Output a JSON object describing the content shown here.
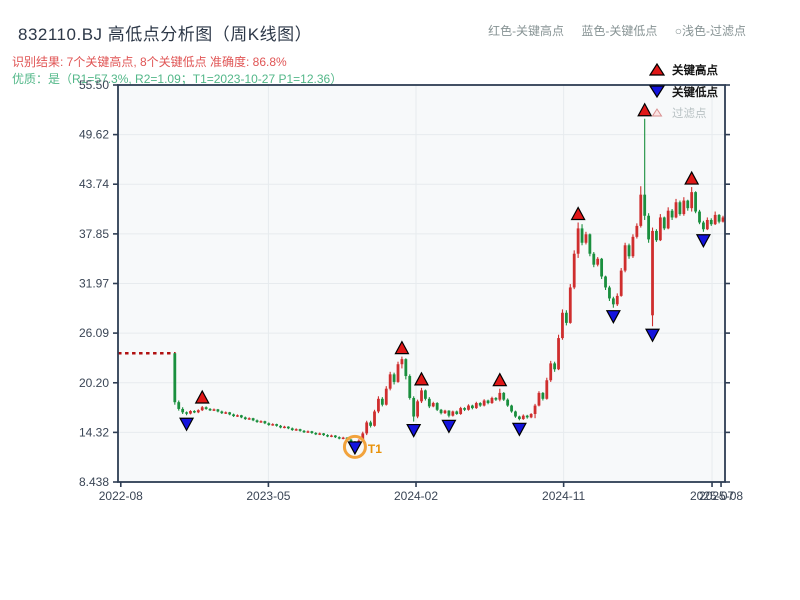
{
  "header": {
    "title": "832110.BJ 高低点分析图（周K线图）",
    "subtitle_result": "识别结果: 7个关键高点, 8个关键低点  准确度: 86.8%",
    "subtitle_quality": "优质：是（R1=57.3%, R2=1.09；T1=2023-10-27 P1=12.36）",
    "note_items": [
      "红色-关键高点",
      "蓝色-关键低点",
      "○浅色-过滤点"
    ]
  },
  "legend": [
    {
      "label": "关键高点",
      "marker": "triangle-up",
      "fill": "#e01818",
      "text_color": "#141414"
    },
    {
      "label": "关键低点",
      "marker": "triangle-down",
      "fill": "#1414dd",
      "text_color": "#141414"
    },
    {
      "label": "过滤点",
      "marker": "triangle-hollow",
      "fill": "#fbe3e3",
      "text_color": "#b9c2c4"
    }
  ],
  "colors": {
    "up_candle": "#cf2e2e",
    "down_candle": "#1a8f3e",
    "high_marker": "#e01818",
    "low_marker": "#1414dd",
    "marker_edge": "#000000",
    "suspension_line": "#b01010",
    "filter_circle": "#f2a33c",
    "t1_label": "#e8920a",
    "spine": "#2e3d54",
    "grid": "#e7ebee",
    "plot_bg": "#f7f9fa",
    "tick_label": "#3a4555"
  },
  "chart_data": {
    "type": "candlestick",
    "title": "832110.BJ 高低点分析图（周K线图）",
    "ylabel": "",
    "xlabel": "",
    "grid": true,
    "y_ticks": [
      {
        "label": "55.50",
        "value": 55.5
      },
      {
        "label": "49.62",
        "value": 49.62
      },
      {
        "label": "43.74",
        "value": 43.74
      },
      {
        "label": "37.85",
        "value": 37.85
      },
      {
        "label": "31.97",
        "value": 31.97
      },
      {
        "label": "26.09",
        "value": 26.09
      },
      {
        "label": "20.20",
        "value": 20.2
      },
      {
        "label": "14.32",
        "value": 14.32
      },
      {
        "label": "8.438",
        "value": 8.438
      }
    ],
    "x_ticks": [
      {
        "label": "2022-08",
        "week": 0.2,
        "gridline": false
      },
      {
        "label": "2023-05",
        "week": 37.9,
        "gridline": true
      },
      {
        "label": "2024-02",
        "week": 75.6,
        "gridline": true
      },
      {
        "label": "2024-11",
        "week": 113.3,
        "gridline": true
      },
      {
        "label": "2025-07",
        "week": 151.2,
        "gridline": true
      },
      {
        "label": "2025-08",
        "week": 153.5,
        "gridline": false
      }
    ],
    "axis": {
      "y_min": 8.438,
      "y_max": 55.5,
      "weeks": 154
    },
    "suspension_line": {
      "price": 23.7,
      "week_start": -0.5,
      "week_end": 14.2
    },
    "candles": [
      [
        14,
        23.7,
        23.7,
        17.6,
        17.9
      ],
      [
        15,
        17.9,
        18.1,
        16.9,
        17.1
      ],
      [
        16,
        17.1,
        17.3,
        16.5,
        16.7
      ],
      [
        17,
        16.7,
        16.8,
        16.35,
        16.55
      ],
      [
        18,
        16.55,
        16.95,
        16.45,
        16.85
      ],
      [
        19,
        16.85,
        16.95,
        16.6,
        16.7
      ],
      [
        20,
        16.7,
        17.05,
        16.6,
        16.95
      ],
      [
        21,
        16.95,
        17.45,
        16.85,
        17.3
      ],
      [
        22,
        17.3,
        17.4,
        17.0,
        17.1
      ],
      [
        23,
        17.1,
        17.2,
        16.85,
        16.95
      ],
      [
        24,
        16.95,
        17.15,
        16.85,
        17.05
      ],
      [
        25,
        17.05,
        17.1,
        16.7,
        16.8
      ],
      [
        26,
        16.8,
        16.9,
        16.5,
        16.6
      ],
      [
        27,
        16.6,
        16.8,
        16.5,
        16.7
      ],
      [
        28,
        16.7,
        16.75,
        16.35,
        16.45
      ],
      [
        29,
        16.45,
        16.55,
        16.15,
        16.25
      ],
      [
        30,
        16.25,
        16.45,
        16.15,
        16.35
      ],
      [
        31,
        16.35,
        16.4,
        16.0,
        16.1
      ],
      [
        32,
        16.1,
        16.2,
        15.8,
        15.9
      ],
      [
        33,
        15.9,
        16.1,
        15.8,
        16.0
      ],
      [
        34,
        16.0,
        16.05,
        15.65,
        15.75
      ],
      [
        35,
        15.75,
        15.85,
        15.45,
        15.55
      ],
      [
        36,
        15.55,
        15.75,
        15.45,
        15.65
      ],
      [
        37,
        15.65,
        15.7,
        15.3,
        15.4
      ],
      [
        38,
        15.4,
        15.5,
        15.1,
        15.2
      ],
      [
        39,
        15.2,
        15.4,
        15.1,
        15.3
      ],
      [
        40,
        15.3,
        15.35,
        15.0,
        15.1
      ],
      [
        41,
        15.1,
        15.2,
        14.8,
        14.9
      ],
      [
        42,
        14.9,
        15.1,
        14.8,
        15.0
      ],
      [
        43,
        15.0,
        15.05,
        14.7,
        14.8
      ],
      [
        44,
        14.8,
        14.9,
        14.5,
        14.6
      ],
      [
        45,
        14.6,
        14.8,
        14.5,
        14.7
      ],
      [
        46,
        14.7,
        14.75,
        14.4,
        14.5
      ],
      [
        47,
        14.5,
        14.6,
        14.25,
        14.35
      ],
      [
        48,
        14.35,
        14.55,
        14.25,
        14.45
      ],
      [
        49,
        14.45,
        14.5,
        14.15,
        14.25
      ],
      [
        50,
        14.25,
        14.35,
        14.0,
        14.1
      ],
      [
        51,
        14.1,
        14.3,
        14.0,
        14.2
      ],
      [
        52,
        14.2,
        14.25,
        13.9,
        14.0
      ],
      [
        53,
        14.0,
        14.1,
        13.75,
        13.85
      ],
      [
        54,
        13.85,
        14.05,
        13.75,
        13.95
      ],
      [
        55,
        13.95,
        14.0,
        13.65,
        13.75
      ],
      [
        56,
        13.75,
        13.85,
        13.5,
        13.6
      ],
      [
        57,
        13.6,
        13.8,
        13.5,
        13.7
      ],
      [
        58,
        13.7,
        13.75,
        13.35,
        13.45
      ],
      [
        59,
        13.45,
        13.55,
        13.1,
        13.2
      ],
      [
        60,
        13.2,
        13.3,
        12.36,
        12.8
      ],
      [
        61,
        12.8,
        13.5,
        12.7,
        13.35
      ],
      [
        62,
        13.35,
        14.4,
        13.2,
        14.2
      ],
      [
        63,
        14.2,
        15.7,
        14.0,
        15.5
      ],
      [
        64,
        15.5,
        15.7,
        14.9,
        15.1
      ],
      [
        65,
        15.1,
        17.0,
        15.0,
        16.8
      ],
      [
        66,
        16.8,
        18.6,
        16.6,
        18.3
      ],
      [
        67,
        18.3,
        18.5,
        17.4,
        17.6
      ],
      [
        68,
        17.6,
        19.8,
        17.5,
        19.5
      ],
      [
        69,
        19.5,
        21.5,
        19.3,
        21.2
      ],
      [
        70,
        21.2,
        21.4,
        20.0,
        20.3
      ],
      [
        71,
        20.3,
        22.7,
        20.2,
        22.4
      ],
      [
        72,
        22.4,
        23.3,
        21.9,
        23.0
      ],
      [
        73,
        23.0,
        23.1,
        20.6,
        21.0
      ],
      [
        74,
        21.0,
        21.2,
        18.2,
        18.4
      ],
      [
        75,
        18.4,
        18.6,
        15.6,
        16.2
      ],
      [
        76,
        16.2,
        18.2,
        16.0,
        18.0
      ],
      [
        77,
        18.0,
        19.6,
        17.8,
        19.3
      ],
      [
        78,
        19.3,
        19.4,
        18.1,
        18.3
      ],
      [
        79,
        18.3,
        18.5,
        17.2,
        17.4
      ],
      [
        80,
        17.4,
        17.95,
        17.3,
        17.8
      ],
      [
        81,
        17.8,
        17.9,
        16.85,
        17.0
      ],
      [
        82,
        17.0,
        17.1,
        16.45,
        16.6
      ],
      [
        83,
        16.6,
        17.0,
        16.5,
        16.9
      ],
      [
        84,
        16.9,
        16.95,
        16.1,
        16.3
      ],
      [
        85,
        16.3,
        16.9,
        16.2,
        16.8
      ],
      [
        86,
        16.8,
        16.9,
        16.4,
        16.5
      ],
      [
        87,
        16.5,
        17.35,
        16.4,
        17.2
      ],
      [
        88,
        17.2,
        17.3,
        16.85,
        17.0
      ],
      [
        89,
        17.0,
        17.65,
        16.9,
        17.5
      ],
      [
        90,
        17.5,
        17.6,
        17.05,
        17.2
      ],
      [
        91,
        17.2,
        17.95,
        17.1,
        17.8
      ],
      [
        92,
        17.8,
        17.9,
        17.35,
        17.5
      ],
      [
        93,
        17.5,
        18.25,
        17.4,
        18.1
      ],
      [
        94,
        18.1,
        18.2,
        17.65,
        17.8
      ],
      [
        95,
        17.8,
        18.55,
        17.7,
        18.4
      ],
      [
        96,
        18.4,
        18.5,
        18.05,
        18.2
      ],
      [
        97,
        18.2,
        19.5,
        18.0,
        19.0
      ],
      [
        98,
        19.0,
        19.1,
        18.05,
        18.2
      ],
      [
        99,
        18.2,
        18.35,
        17.35,
        17.5
      ],
      [
        100,
        17.5,
        17.6,
        16.65,
        16.8
      ],
      [
        101,
        16.8,
        16.9,
        16.05,
        16.2
      ],
      [
        102,
        16.2,
        16.3,
        15.75,
        15.9
      ],
      [
        103,
        15.9,
        16.45,
        15.8,
        16.3
      ],
      [
        104,
        16.3,
        16.4,
        15.95,
        16.1
      ],
      [
        105,
        16.1,
        16.6,
        16.0,
        16.5
      ],
      [
        106,
        16.5,
        17.7,
        16.0,
        17.5
      ],
      [
        107,
        17.5,
        19.2,
        17.4,
        19.0
      ],
      [
        108,
        19.0,
        19.1,
        18.1,
        18.3
      ],
      [
        109,
        18.3,
        20.8,
        18.2,
        20.5
      ],
      [
        110,
        20.5,
        22.8,
        20.3,
        22.5
      ],
      [
        111,
        22.5,
        22.7,
        21.5,
        21.8
      ],
      [
        112,
        21.8,
        25.9,
        21.7,
        25.5
      ],
      [
        113,
        25.5,
        28.9,
        25.3,
        28.5
      ],
      [
        114,
        28.5,
        28.8,
        27.0,
        27.3
      ],
      [
        115,
        27.3,
        31.9,
        27.2,
        31.5
      ],
      [
        116,
        31.5,
        35.9,
        31.3,
        35.5
      ],
      [
        117,
        35.5,
        39.2,
        35.0,
        38.5
      ],
      [
        118,
        38.5,
        39.0,
        36.5,
        36.8
      ],
      [
        119,
        36.8,
        38.1,
        36.6,
        37.8
      ],
      [
        120,
        37.8,
        37.9,
        35.2,
        35.5
      ],
      [
        121,
        35.5,
        35.7,
        33.9,
        34.2
      ],
      [
        122,
        34.2,
        35.1,
        34.0,
        34.9
      ],
      [
        123,
        34.9,
        35.0,
        32.5,
        32.8
      ],
      [
        124,
        32.8,
        32.9,
        31.2,
        31.5
      ],
      [
        125,
        31.5,
        31.7,
        29.9,
        30.2
      ],
      [
        126,
        30.2,
        30.4,
        29.1,
        29.5
      ],
      [
        127,
        29.5,
        30.8,
        29.3,
        30.5
      ],
      [
        128,
        30.5,
        33.8,
        30.4,
        33.5
      ],
      [
        129,
        33.5,
        36.8,
        33.3,
        36.5
      ],
      [
        130,
        36.5,
        36.7,
        34.9,
        35.2
      ],
      [
        131,
        35.2,
        37.8,
        35.0,
        37.5
      ],
      [
        132,
        37.5,
        39.1,
        37.3,
        38.8
      ],
      [
        133,
        38.8,
        43.5,
        38.6,
        42.5
      ],
      [
        134,
        42.5,
        51.5,
        39.5,
        40.0
      ],
      [
        135,
        40.0,
        40.3,
        36.8,
        37.2
      ],
      [
        136,
        28.2,
        38.6,
        26.9,
        38.2
      ],
      [
        137,
        38.2,
        38.4,
        36.9,
        37.1
      ],
      [
        138,
        37.1,
        40.2,
        37.0,
        39.8
      ],
      [
        139,
        39.8,
        39.9,
        38.3,
        38.5
      ],
      [
        140,
        38.5,
        41.0,
        38.4,
        40.6
      ],
      [
        141,
        40.6,
        40.8,
        39.5,
        39.8
      ],
      [
        142,
        39.8,
        42.0,
        39.7,
        41.6
      ],
      [
        143,
        41.6,
        41.8,
        40.0,
        40.2
      ],
      [
        144,
        40.2,
        42.2,
        40.0,
        41.8
      ],
      [
        145,
        41.8,
        41.9,
        40.6,
        40.9
      ],
      [
        146,
        40.9,
        43.4,
        40.5,
        42.8
      ],
      [
        147,
        42.8,
        42.9,
        40.3,
        40.5
      ],
      [
        148,
        40.5,
        40.7,
        39.0,
        39.2
      ],
      [
        149,
        39.2,
        39.4,
        38.1,
        38.4
      ],
      [
        150,
        38.4,
        39.8,
        38.3,
        39.5
      ],
      [
        151,
        39.5,
        39.7,
        38.8,
        39.0
      ],
      [
        152,
        39.0,
        40.5,
        38.9,
        40.1
      ],
      [
        153,
        40.1,
        40.2,
        39.1,
        39.3
      ],
      [
        154,
        39.3,
        40.0,
        39.2,
        39.8
      ]
    ],
    "key_highs": [
      {
        "week": 21,
        "price": 17.45
      },
      {
        "week": 72,
        "price": 23.3
      },
      {
        "week": 77,
        "price": 19.6
      },
      {
        "week": 97,
        "price": 19.5
      },
      {
        "week": 117,
        "price": 39.2
      },
      {
        "week": 134,
        "price": 51.5
      },
      {
        "week": 146,
        "price": 43.4
      }
    ],
    "key_lows": [
      {
        "week": 17,
        "price": 16.35
      },
      {
        "week": 60,
        "price": 12.36,
        "inset": true
      },
      {
        "week": 75,
        "price": 15.6
      },
      {
        "week": 84,
        "price": 16.1
      },
      {
        "week": 102,
        "price": 15.75
      },
      {
        "week": 126,
        "price": 29.1
      },
      {
        "week": 136,
        "price": 26.9
      },
      {
        "week": 149,
        "price": 38.1
      }
    ],
    "filtered_point": {
      "week": 60,
      "price": 12.36,
      "label": "T1"
    }
  }
}
